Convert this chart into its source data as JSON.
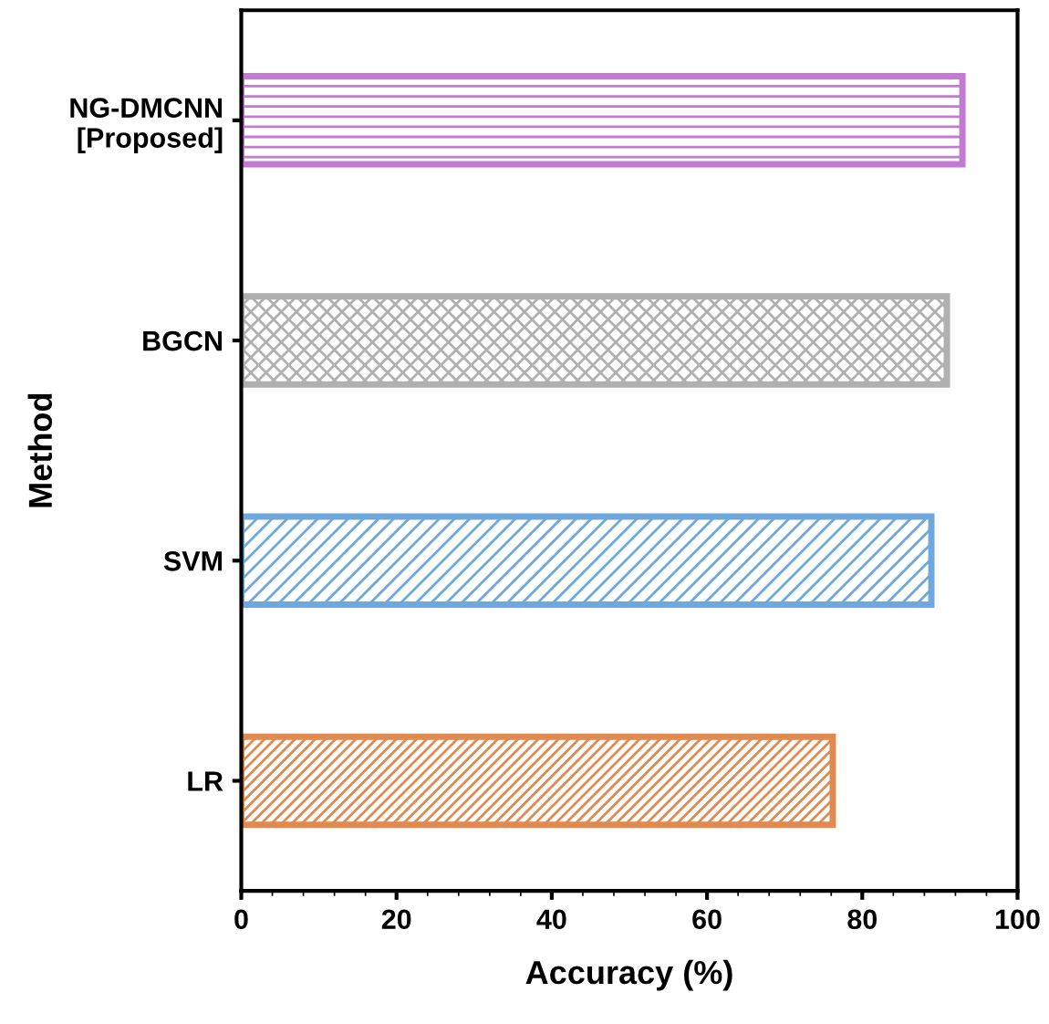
{
  "chart_data": {
    "type": "bar",
    "orientation": "horizontal",
    "xlabel": "Accuracy (%)",
    "ylabel": "Method",
    "categories": [
      "NG-DMCNN\n[Proposed]",
      "BGCN",
      "SVM",
      "LR"
    ],
    "values": [
      92.9,
      90.9,
      88.9,
      76.2
    ],
    "colors": [
      "#c27bd0",
      "#b0b0b0",
      "#6fa8dc",
      "#e08a50"
    ],
    "xlim": [
      0,
      100
    ],
    "xticks": [
      0,
      20,
      40,
      60,
      80,
      100
    ],
    "grid": false
  }
}
